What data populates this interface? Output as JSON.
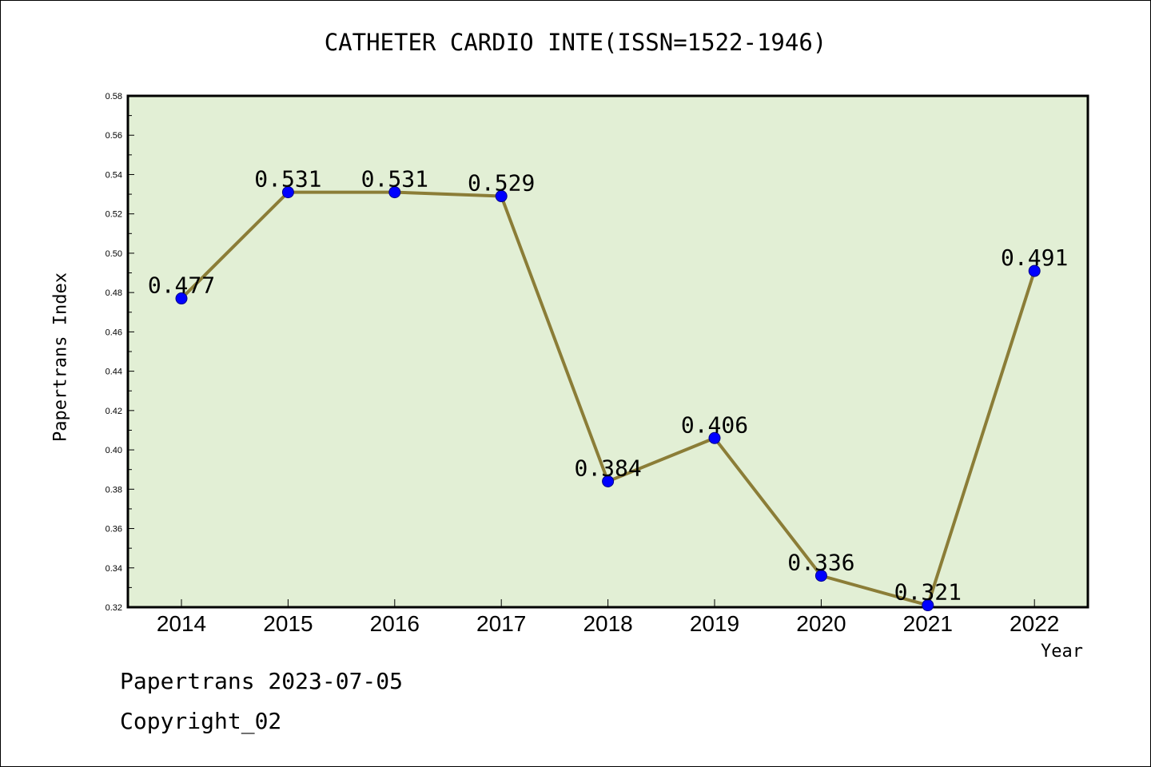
{
  "title": "CATHETER CARDIO INTE(ISSN=1522-1946)",
  "footer": {
    "line1": "Papertrans 2023-07-05",
    "line2": "Copyright_02"
  },
  "colors": {
    "plot_background": "#e2efd5",
    "line": "#8b7d37",
    "marker": "#0000ff"
  },
  "chart_data": {
    "type": "line",
    "title": "CATHETER CARDIO INTE(ISSN=1522-1946)",
    "xlabel": "Year",
    "ylabel": "Papertrans Index",
    "categories": [
      "2014",
      "2015",
      "2016",
      "2017",
      "2018",
      "2019",
      "2020",
      "2021",
      "2022"
    ],
    "values": [
      0.477,
      0.531,
      0.531,
      0.529,
      0.384,
      0.406,
      0.336,
      0.321,
      0.491
    ],
    "data_labels": [
      "0.477",
      "0.531",
      "0.531",
      "0.529",
      "0.384",
      "0.406",
      "0.336",
      "0.321",
      "0.491"
    ],
    "ylim": [
      0.32,
      0.58
    ],
    "yticks": [
      "0.32",
      "0.34",
      "0.36",
      "0.38",
      "0.40",
      "0.42",
      "0.44",
      "0.46",
      "0.48",
      "0.50",
      "0.52",
      "0.54",
      "0.56",
      "0.58"
    ],
    "grid": false,
    "legend": "none"
  }
}
